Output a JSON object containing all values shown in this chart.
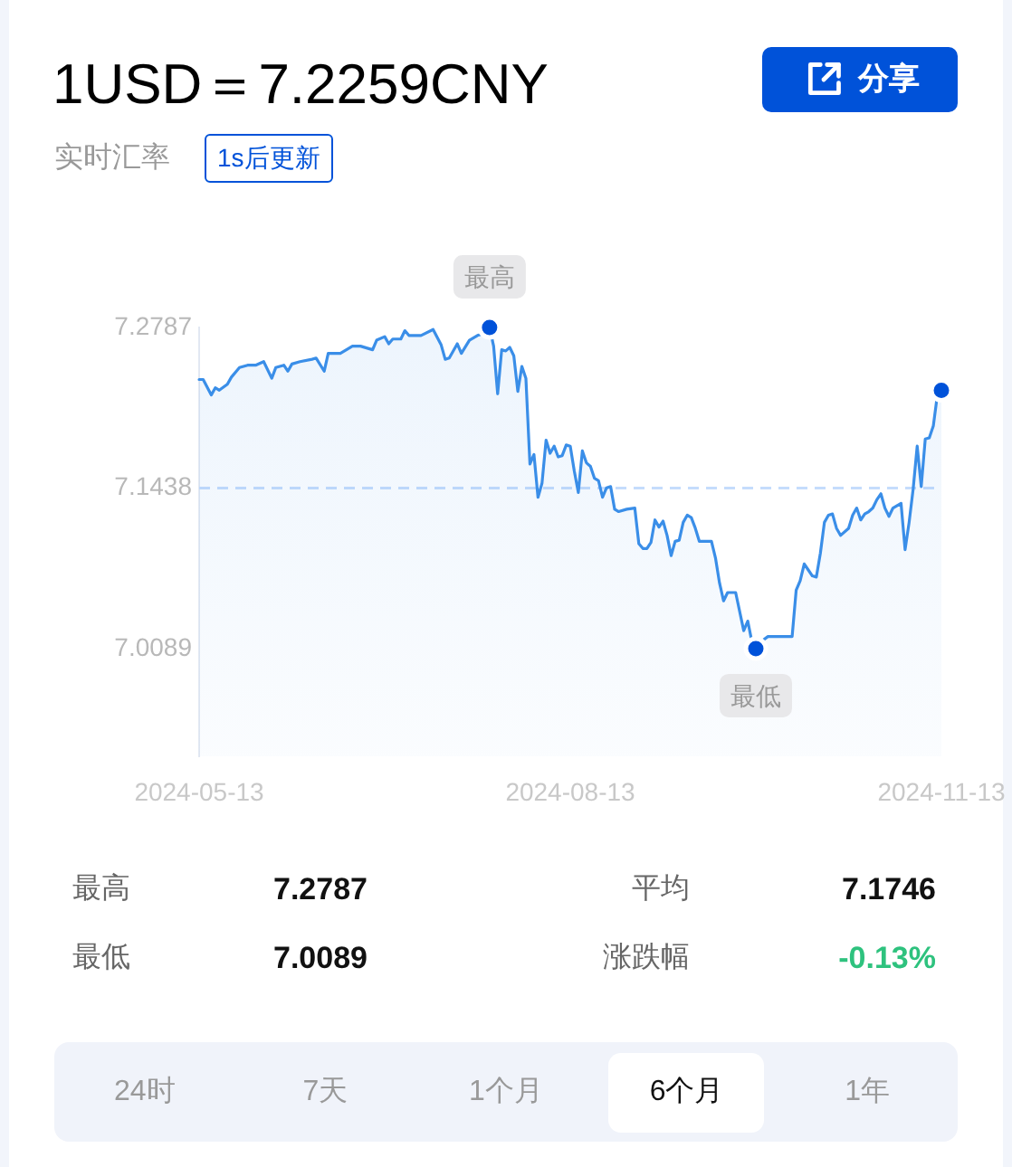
{
  "chart_data": {
    "type": "area",
    "title": "1USD＝7.2259CNY",
    "subtitle": "实时汇率",
    "annotations": [
      "1s后更新",
      "分享",
      "最高",
      "7.2787",
      "平均",
      "7.1746",
      "最低",
      "7.0089",
      "涨跌幅",
      "-0.13%",
      "24时",
      "7天",
      "1个月",
      "6个月",
      "1年",
      {
        "text": "最高",
        "x": "2024-07-24",
        "y": 7.2787
      },
      {
        "text": "最低",
        "x": "2024-09-28",
        "y": 7.0089
      }
    ],
    "x": [
      "2024-05-13",
      "2024-05-14",
      "2024-05-16",
      "2024-05-17",
      "2024-05-18",
      "2024-05-20",
      "2024-05-21",
      "2024-05-23",
      "2024-05-25",
      "2024-05-27",
      "2024-05-29",
      "2024-05-31",
      "2024-06-01",
      "2024-06-03",
      "2024-06-04",
      "2024-06-05",
      "2024-06-07",
      "2024-06-10",
      "2024-06-11",
      "2024-06-13",
      "2024-06-14",
      "2024-06-17",
      "2024-06-20",
      "2024-06-22",
      "2024-06-25",
      "2024-06-26",
      "2024-06-28",
      "2024-06-29",
      "2024-06-30",
      "2024-07-02",
      "2024-07-03",
      "2024-07-04",
      "2024-07-07",
      "2024-07-10",
      "2024-07-12",
      "2024-07-13",
      "2024-07-14",
      "2024-07-16",
      "2024-07-17",
      "2024-07-19",
      "2024-07-21",
      "2024-07-22",
      "2024-07-24",
      "2024-07-25",
      "2024-07-26",
      "2024-07-27",
      "2024-07-28",
      "2024-07-29",
      "2024-07-30",
      "2024-07-31",
      "2024-08-01",
      "2024-08-02",
      "2024-08-03",
      "2024-08-04",
      "2024-08-05",
      "2024-08-06",
      "2024-08-07",
      "2024-08-08",
      "2024-08-09",
      "2024-08-10",
      "2024-08-11",
      "2024-08-12",
      "2024-08-13",
      "2024-08-14",
      "2024-08-15",
      "2024-08-16",
      "2024-08-17",
      "2024-08-18",
      "2024-08-19",
      "2024-08-20",
      "2024-08-21",
      "2024-08-22",
      "2024-08-23",
      "2024-08-24",
      "2024-08-25",
      "2024-08-27",
      "2024-08-29",
      "2024-08-30",
      "2024-08-31",
      "2024-09-01",
      "2024-09-02",
      "2024-09-03",
      "2024-09-04",
      "2024-09-05",
      "2024-09-06",
      "2024-09-07",
      "2024-09-08",
      "2024-09-09",
      "2024-09-10",
      "2024-09-11",
      "2024-09-12",
      "2024-09-13",
      "2024-09-14",
      "2024-09-17",
      "2024-09-18",
      "2024-09-19",
      "2024-09-20",
      "2024-09-21",
      "2024-09-23",
      "2024-09-25",
      "2024-09-26",
      "2024-09-27",
      "2024-09-28",
      "2024-09-29",
      "2024-10-01",
      "2024-10-03",
      "2024-10-07",
      "2024-10-08",
      "2024-10-09",
      "2024-10-10",
      "2024-10-11",
      "2024-10-12",
      "2024-10-13",
      "2024-10-14",
      "2024-10-15",
      "2024-10-16",
      "2024-10-17",
      "2024-10-18",
      "2024-10-19",
      "2024-10-21",
      "2024-10-22",
      "2024-10-23",
      "2024-10-24",
      "2024-10-25",
      "2024-10-26",
      "2024-10-27",
      "2024-10-28",
      "2024-10-29",
      "2024-10-30",
      "2024-10-31",
      "2024-11-01",
      "2024-11-03",
      "2024-11-04",
      "2024-11-05",
      "2024-11-06",
      "2024-11-07",
      "2024-11-08",
      "2024-11-09",
      "2024-11-10",
      "2024-11-11",
      "2024-11-12",
      "2024-11-13"
    ],
    "series": [
      {
        "color": "#3a8ee8",
        "values": [
          7.235,
          7.235,
          7.222,
          7.228,
          7.226,
          7.231,
          7.237,
          7.245,
          7.247,
          7.247,
          7.25,
          7.236,
          7.245,
          7.247,
          7.242,
          7.248,
          7.25,
          7.252,
          7.253,
          7.242,
          7.257,
          7.257,
          7.263,
          7.263,
          7.26,
          7.268,
          7.271,
          7.265,
          7.269,
          7.269,
          7.276,
          7.272,
          7.272,
          7.277,
          7.264,
          7.252,
          7.253,
          7.265,
          7.257,
          7.268,
          7.272,
          7.273,
          7.2787,
          7.263,
          7.223,
          7.26,
          7.259,
          7.262,
          7.255,
          7.225,
          7.246,
          7.236,
          7.164,
          7.172,
          7.136,
          7.148,
          7.184,
          7.173,
          7.179,
          7.17,
          7.171,
          7.18,
          7.179,
          7.158,
          7.14,
          7.175,
          7.165,
          7.162,
          7.152,
          7.15,
          7.136,
          7.144,
          7.145,
          7.126,
          7.124,
          7.126,
          7.127,
          7.097,
          7.093,
          7.093,
          7.098,
          7.117,
          7.111,
          7.116,
          7.104,
          7.087,
          7.099,
          7.1,
          7.115,
          7.121,
          7.119,
          7.11,
          7.099,
          7.099,
          7.085,
          7.064,
          7.049,
          7.056,
          7.056,
          7.024,
          7.032,
          7.015,
          7.0089,
          7.014,
          7.019,
          7.019,
          7.019,
          7.058,
          7.066,
          7.08,
          7.075,
          7.07,
          7.069,
          7.089,
          7.115,
          7.121,
          7.122,
          7.11,
          7.104,
          7.11,
          7.121,
          7.127,
          7.117,
          7.122,
          7.124,
          7.127,
          7.134,
          7.139,
          7.127,
          7.12,
          7.127,
          7.131,
          7.092,
          7.115,
          7.143,
          7.179,
          7.145,
          7.185,
          7.186,
          7.196,
          7.222,
          7.2259
        ]
      },
      {
        "type": "scatter",
        "color": "#0052d9",
        "marker": "circle",
        "x": [
          "2024-07-24",
          "2024-09-28",
          "2024-11-13"
        ],
        "values": [
          7.2787,
          7.0089,
          7.2259
        ]
      }
    ],
    "xlim": [
      "2024-05-13",
      "2024-11-13"
    ],
    "xticks": [
      "2024-05-13",
      "2024-08-13",
      "2024-11-13"
    ],
    "ylim": [
      6.9184,
      7.2787
    ],
    "yticks": [
      7.0089,
      7.1438,
      7.2787
    ],
    "ref_lines": [
      {
        "axis": "y",
        "value": 7.1438,
        "color": "#c5dcfc",
        "line_style": "dashed"
      }
    ],
    "grid": false,
    "legend": false,
    "marker": "none"
  }
}
